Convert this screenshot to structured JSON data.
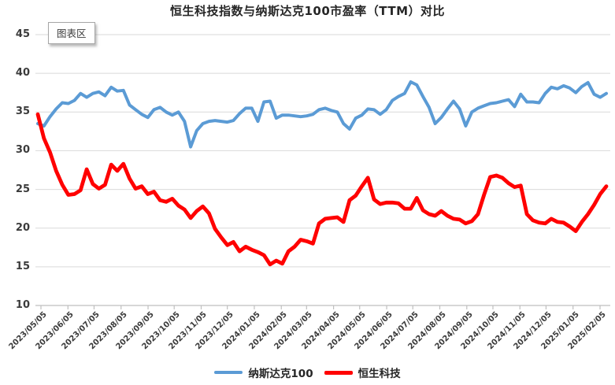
{
  "chart": {
    "tooltip_label": "图表区"
  },
  "chart_data": {
    "type": "line",
    "title": "恒生科技指数与纳斯达克100市盈率（TTM）对比",
    "x_start": "2023/05/05",
    "x_interval": "weekly",
    "x_tick_labels": [
      "2023/05/05",
      "2023/06/05",
      "2023/07/05",
      "2023/08/05",
      "2023/09/05",
      "2023/10/05",
      "2023/11/05",
      "2023/12/05",
      "2024/01/05",
      "2024/02/05",
      "2024/03/05",
      "2024/04/05",
      "2024/05/05",
      "2024/06/05",
      "2024/07/05",
      "2024/08/05",
      "2024/09/05",
      "2024/10/05",
      "2024/11/05",
      "2024/12/05",
      "2025/01/05",
      "2025/02/05"
    ],
    "x_tick_days": [
      0,
      31,
      61,
      92,
      123,
      153,
      184,
      214,
      245,
      276,
      305,
      336,
      366,
      397,
      427,
      458,
      489,
      519,
      550,
      580,
      611,
      642
    ],
    "span_days": 651,
    "ylim": [
      10,
      45
    ],
    "y_ticks": [
      45,
      40,
      35,
      30,
      25,
      20,
      15,
      10
    ],
    "grid": "horizontal",
    "legend_position": "bottom",
    "colors": {
      "grid": "#d9d9d9",
      "axis": "#bfbfbf",
      "text": "#3b3b3b"
    },
    "series": [
      {
        "name": "纳斯达克100",
        "color": "#5B9BD5",
        "stroke_width": 4,
        "values": [
          33.5,
          33.2,
          34.4,
          35.4,
          36.2,
          36.1,
          36.5,
          37.4,
          36.9,
          37.4,
          37.6,
          37.1,
          38.2,
          37.7,
          37.8,
          35.9,
          35.3,
          34.7,
          34.3,
          35.3,
          35.6,
          35.0,
          34.6,
          35.0,
          33.8,
          30.5,
          32.6,
          33.5,
          33.8,
          33.9,
          33.8,
          33.7,
          33.9,
          34.8,
          35.5,
          35.5,
          33.8,
          36.3,
          36.4,
          34.2,
          34.6,
          34.6,
          34.5,
          34.4,
          34.5,
          34.7,
          35.3,
          35.5,
          35.2,
          35.0,
          33.5,
          32.8,
          34.2,
          34.6,
          35.4,
          35.3,
          34.7,
          35.3,
          36.5,
          37.0,
          37.4,
          38.9,
          38.5,
          37.0,
          35.6,
          33.5,
          34.3,
          35.4,
          36.4,
          35.4,
          33.2,
          35.0,
          35.5,
          35.8,
          36.1,
          36.2,
          36.4,
          36.6,
          35.7,
          37.3,
          36.3,
          36.3,
          36.2,
          37.4,
          38.2,
          38.0,
          38.4,
          38.1,
          37.5,
          38.3,
          38.8,
          37.3,
          36.9,
          37.4
        ]
      },
      {
        "name": "恒生科技",
        "color": "#FF0000",
        "stroke_width": 4.8,
        "values": [
          34.7,
          31.6,
          29.8,
          27.4,
          25.6,
          24.3,
          24.4,
          24.9,
          27.6,
          25.7,
          25.1,
          25.6,
          28.2,
          27.4,
          28.3,
          26.4,
          25.1,
          25.4,
          24.4,
          24.7,
          23.6,
          23.4,
          23.8,
          22.9,
          22.4,
          21.3,
          22.2,
          22.8,
          21.9,
          19.9,
          18.8,
          17.8,
          18.2,
          17.0,
          17.6,
          17.2,
          16.9,
          16.5,
          15.3,
          15.8,
          15.4,
          17.0,
          17.6,
          18.5,
          18.3,
          18.0,
          20.6,
          21.2,
          21.3,
          21.4,
          20.8,
          23.6,
          24.2,
          25.4,
          26.5,
          23.7,
          23.1,
          23.3,
          23.3,
          23.2,
          22.5,
          22.5,
          23.9,
          22.3,
          21.8,
          21.6,
          22.2,
          21.6,
          21.2,
          21.1,
          20.6,
          20.9,
          21.8,
          24.3,
          26.6,
          26.8,
          26.5,
          25.8,
          25.3,
          25.5,
          21.8,
          21.0,
          20.7,
          20.6,
          21.2,
          20.8,
          20.7,
          20.2,
          19.6,
          20.8,
          21.8,
          23.0,
          24.4,
          25.4
        ]
      }
    ]
  }
}
